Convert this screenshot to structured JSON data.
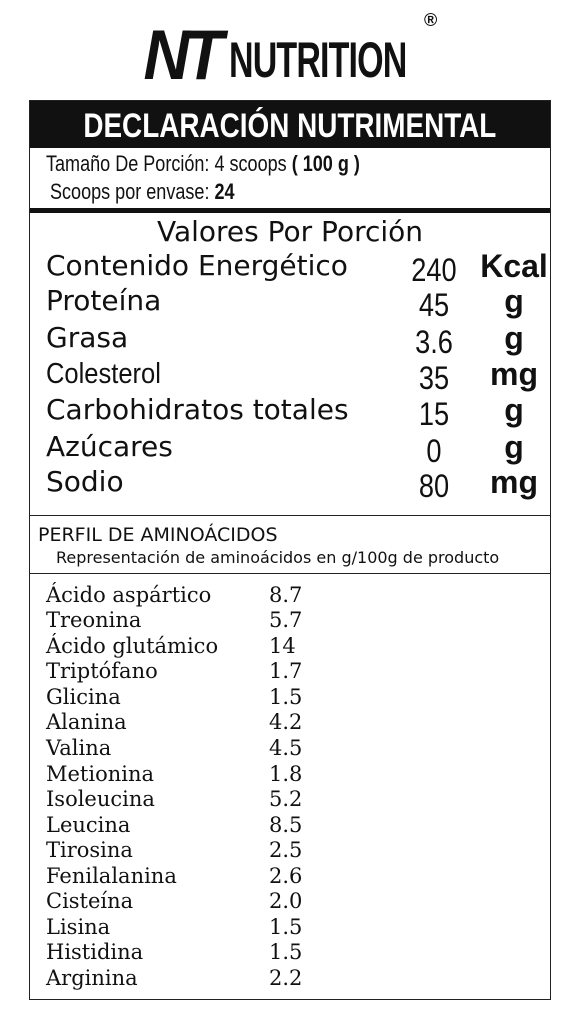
{
  "brand": {
    "mark": "NT",
    "word": "NUTRITION",
    "registered": "®"
  },
  "header": {
    "title": "DECLARACIÓN NUTRIMENTAL",
    "serving_label": "Tamaño De Porción:",
    "serving_value": "4 scoops",
    "serving_open": "(",
    "serving_grams": "100 g",
    "serving_close": ")",
    "scoops_label": "Scoops por envase:",
    "scoops_value": "24"
  },
  "nutrition": {
    "heading": "Valores Por Porción",
    "rows": [
      {
        "name": "Contenido Energético",
        "value": "240",
        "unit": "Kcal"
      },
      {
        "name": "Proteína",
        "value": "45",
        "unit": "g"
      },
      {
        "name": "Grasa",
        "value": "3.6",
        "unit": "g"
      },
      {
        "name": "Colesterol",
        "value": "35",
        "unit": "mg"
      },
      {
        "name": "Carbohidratos totales",
        "value": "15",
        "unit": "g"
      },
      {
        "name": "Azúcares",
        "value": "0",
        "unit": "g"
      },
      {
        "name": "Sodio",
        "value": "80",
        "unit": "mg"
      }
    ]
  },
  "amino": {
    "title": "PERFIL DE AMINOÁCIDOS",
    "subtitle": "Representación de aminoácidos en g/100g de producto",
    "rows": [
      {
        "name": "Ácido aspártico",
        "value": "8.7"
      },
      {
        "name": "Treonina",
        "value": "5.7"
      },
      {
        "name": "Ácido glutámico",
        "value": "14"
      },
      {
        "name": "Triptófano",
        "value": "1.7"
      },
      {
        "name": "Glicina",
        "value": "1.5"
      },
      {
        "name": "Alanina",
        "value": "4.2"
      },
      {
        "name": "Valina",
        "value": "4.5"
      },
      {
        "name": "Metionina",
        "value": "1.8"
      },
      {
        "name": "Isoleucina",
        "value": "5.2"
      },
      {
        "name": "Leucina",
        "value": "8.5"
      },
      {
        "name": "Tirosina",
        "value": "2.5"
      },
      {
        "name": "Fenilalanina",
        "value": "2.6"
      },
      {
        "name": "Cisteína",
        "value": "2.0"
      },
      {
        "name": "Lisina",
        "value": "1.5"
      },
      {
        "name": "Histidina",
        "value": "1.5"
      },
      {
        "name": "Arginina",
        "value": "2.2"
      }
    ]
  }
}
